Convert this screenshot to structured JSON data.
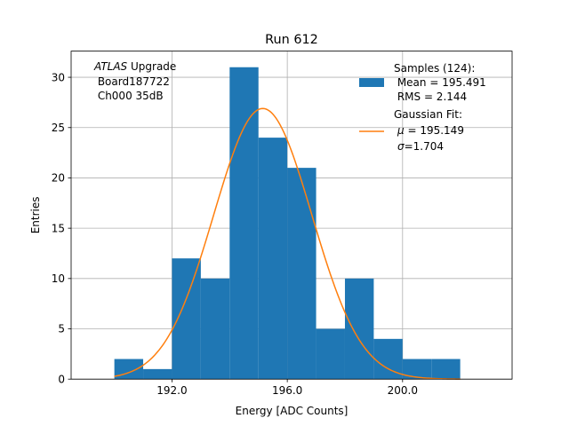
{
  "chart_data": {
    "type": "bar",
    "title": "Run 612",
    "xlabel": "Energy [ADC Counts]",
    "ylabel": "Entries",
    "xlim": [
      188.5,
      203.8
    ],
    "ylim": [
      0,
      32.6
    ],
    "grid": true,
    "x_ticks": [
      192,
      196,
      200
    ],
    "x_tick_labels": [
      "192.0",
      "196.0",
      "200.0"
    ],
    "y_ticks": [
      0,
      5,
      10,
      15,
      20,
      25,
      30
    ],
    "y_tick_labels": [
      "0",
      "5",
      "10",
      "15",
      "20",
      "25",
      "30"
    ],
    "bin_edges": [
      190,
      191,
      192,
      193,
      194,
      195,
      196,
      197,
      198,
      199,
      200,
      201,
      202
    ],
    "values": [
      2,
      1,
      12,
      10,
      31,
      24,
      21,
      5,
      10,
      4,
      2,
      2
    ],
    "bar_color": "#1f77b4",
    "fit": {
      "type": "gaussian",
      "mu": 195.149,
      "sigma": 1.704,
      "amplitude": 26.9,
      "x_range": [
        190,
        202
      ],
      "color": "#ff7f0e"
    },
    "annotation": {
      "italic": "ATLAS",
      "line1_rest": " Upgrade",
      "line2": " Board187722",
      "line3": " Ch000 35dB"
    },
    "legend": {
      "placement": "top-right",
      "samples": {
        "line1": "Samples (124):",
        "line2": " Mean = 195.491",
        "line3": " RMS = 2.144"
      },
      "fit": {
        "line1": "Gaussian Fit:",
        "mu_symbol": "μ",
        "mu_text": " = 195.149",
        "sigma_symbol": "σ",
        "sigma_text": "=1.704"
      }
    }
  }
}
